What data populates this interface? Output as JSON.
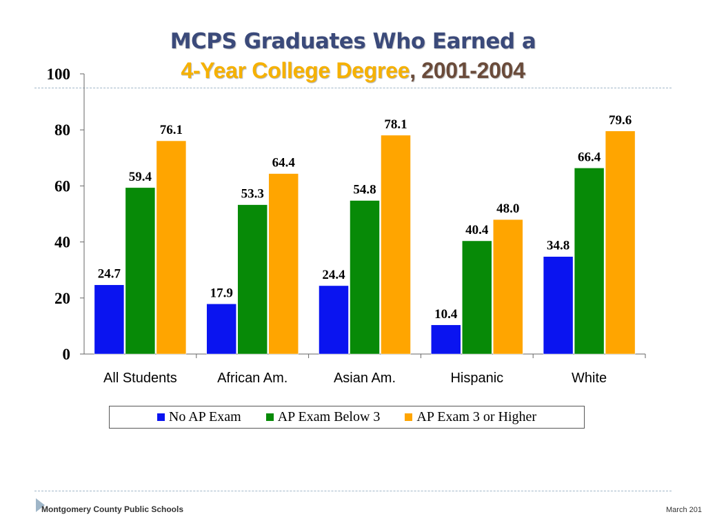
{
  "title": {
    "line1": "MCPS Graduates Who Earned a",
    "line2_highlight": "4-Year College Degree",
    "line2_rest": ", 2001-2004"
  },
  "chart_data": {
    "type": "bar",
    "title": "MCPS Graduates Who Earned a 4-Year College Degree, 2001-2004",
    "categories": [
      "All Students",
      "African Am.",
      "Asian Am.",
      "Hispanic",
      "White"
    ],
    "series": [
      {
        "name": "No AP Exam",
        "color": "#0a14f0",
        "values": [
          24.7,
          17.9,
          24.4,
          10.4,
          34.8
        ]
      },
      {
        "name": "AP Exam Below 3",
        "color": "#078a07",
        "values": [
          59.4,
          53.3,
          54.8,
          40.4,
          66.4
        ]
      },
      {
        "name": "AP Exam 3 or Higher",
        "color": "#ffa500",
        "values": [
          76.1,
          64.4,
          78.1,
          48.0,
          79.6
        ]
      }
    ],
    "value_labels": [
      [
        "24.7",
        "17.9",
        "24.4",
        "10.4",
        "34.8"
      ],
      [
        "59.4",
        "53.3",
        "54.8",
        "40.4",
        "66.4"
      ],
      [
        "76.1",
        "64.4",
        "78.1",
        "48.0",
        "79.6"
      ]
    ],
    "ylim": [
      0,
      100
    ],
    "yticks": [
      0,
      20,
      40,
      60,
      80,
      100
    ],
    "ytick_labels": [
      "0",
      "20",
      "40",
      "60",
      "80",
      "100"
    ],
    "xlabel": "",
    "ylabel": "",
    "grid": false,
    "legend_position": "bottom"
  },
  "footer": {
    "organization": "Montgomery County Public Schools",
    "date": "March 201"
  }
}
